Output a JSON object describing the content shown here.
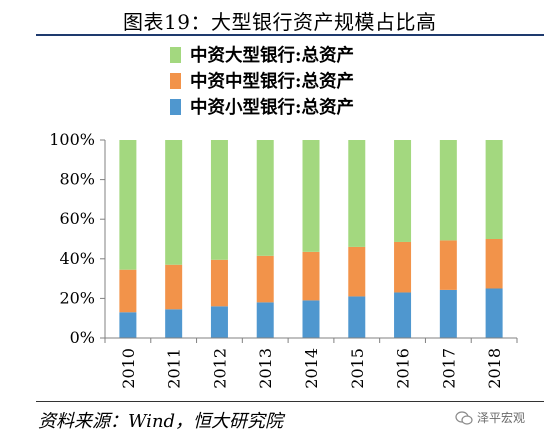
{
  "title": "图表19：大型银行资产规模占比高",
  "source": "资料来源：Wind，恒大研究院",
  "watermark": "泽平宏观",
  "colors": {
    "large": "#a3d87f",
    "medium": "#f2934a",
    "small": "#4f97cf",
    "title_rule": "#1e3a6e"
  },
  "chart_data": {
    "type": "bar",
    "stacked": true,
    "categories": [
      "2010",
      "2011",
      "2012",
      "2013",
      "2014",
      "2015",
      "2016",
      "2017",
      "2018"
    ],
    "series": [
      {
        "name": "中资小型银行:总资产",
        "color_key": "small",
        "values": [
          13.0,
          14.5,
          16.0,
          18.0,
          19.0,
          21.0,
          23.0,
          24.3,
          25.0
        ]
      },
      {
        "name": "中资中型银行:总资产",
        "color_key": "medium",
        "values": [
          21.5,
          22.5,
          23.5,
          23.5,
          24.5,
          25.0,
          25.5,
          25.0,
          25.0
        ]
      },
      {
        "name": "中资大型银行:总资产",
        "color_key": "large",
        "values": [
          65.5,
          63.0,
          60.5,
          58.5,
          56.5,
          54.0,
          51.5,
          50.7,
          50.0
        ]
      }
    ],
    "legend_order": [
      "中资大型银行:总资产",
      "中资中型银行:总资产",
      "中资小型银行:总资产"
    ],
    "legend_position": "top",
    "ylim": [
      0,
      100
    ],
    "yticks": [
      "0%",
      "20%",
      "40%",
      "60%",
      "80%",
      "100%"
    ],
    "ytick_values": [
      0,
      20,
      40,
      60,
      80,
      100
    ],
    "grid": false
  }
}
